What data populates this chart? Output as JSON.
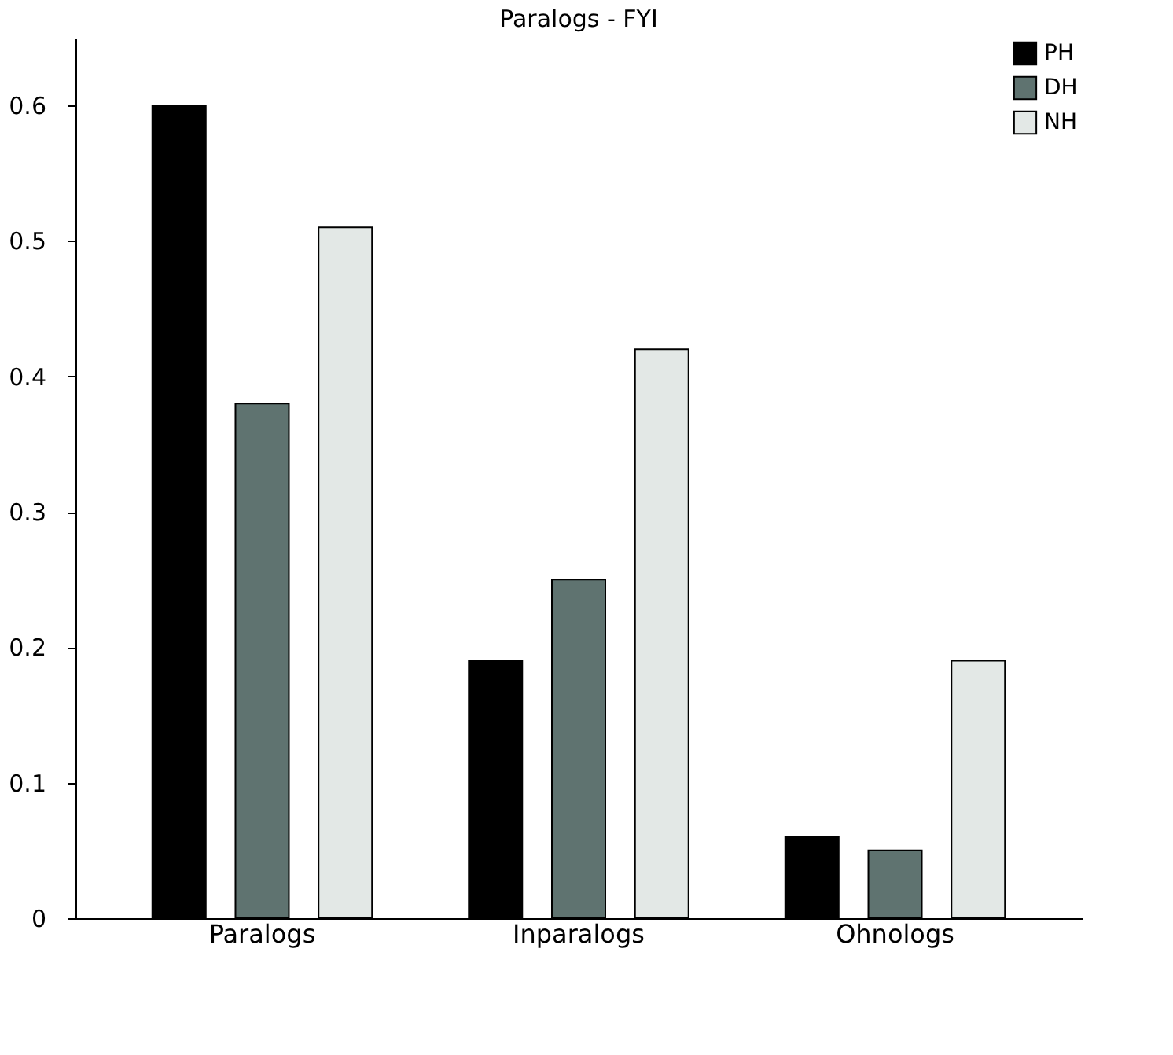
{
  "chart_data": {
    "type": "bar",
    "title": "Paralogs - FYI",
    "categories": [
      "Paralogs",
      "Inparalogs",
      "Ohnologs"
    ],
    "series": [
      {
        "name": "PH",
        "color": "#000000",
        "values": [
          0.6,
          0.19,
          0.06
        ]
      },
      {
        "name": "DH",
        "color": "#5f7370",
        "values": [
          0.38,
          0.25,
          0.05
        ]
      },
      {
        "name": "NH",
        "color": "#e3e8e6",
        "values": [
          0.51,
          0.42,
          0.19
        ]
      }
    ],
    "ylim": [
      0,
      0.65
    ],
    "yticks": [
      0,
      0.1,
      0.2,
      0.3,
      0.4,
      0.5,
      0.6
    ],
    "grid": false,
    "legend": "top right"
  }
}
